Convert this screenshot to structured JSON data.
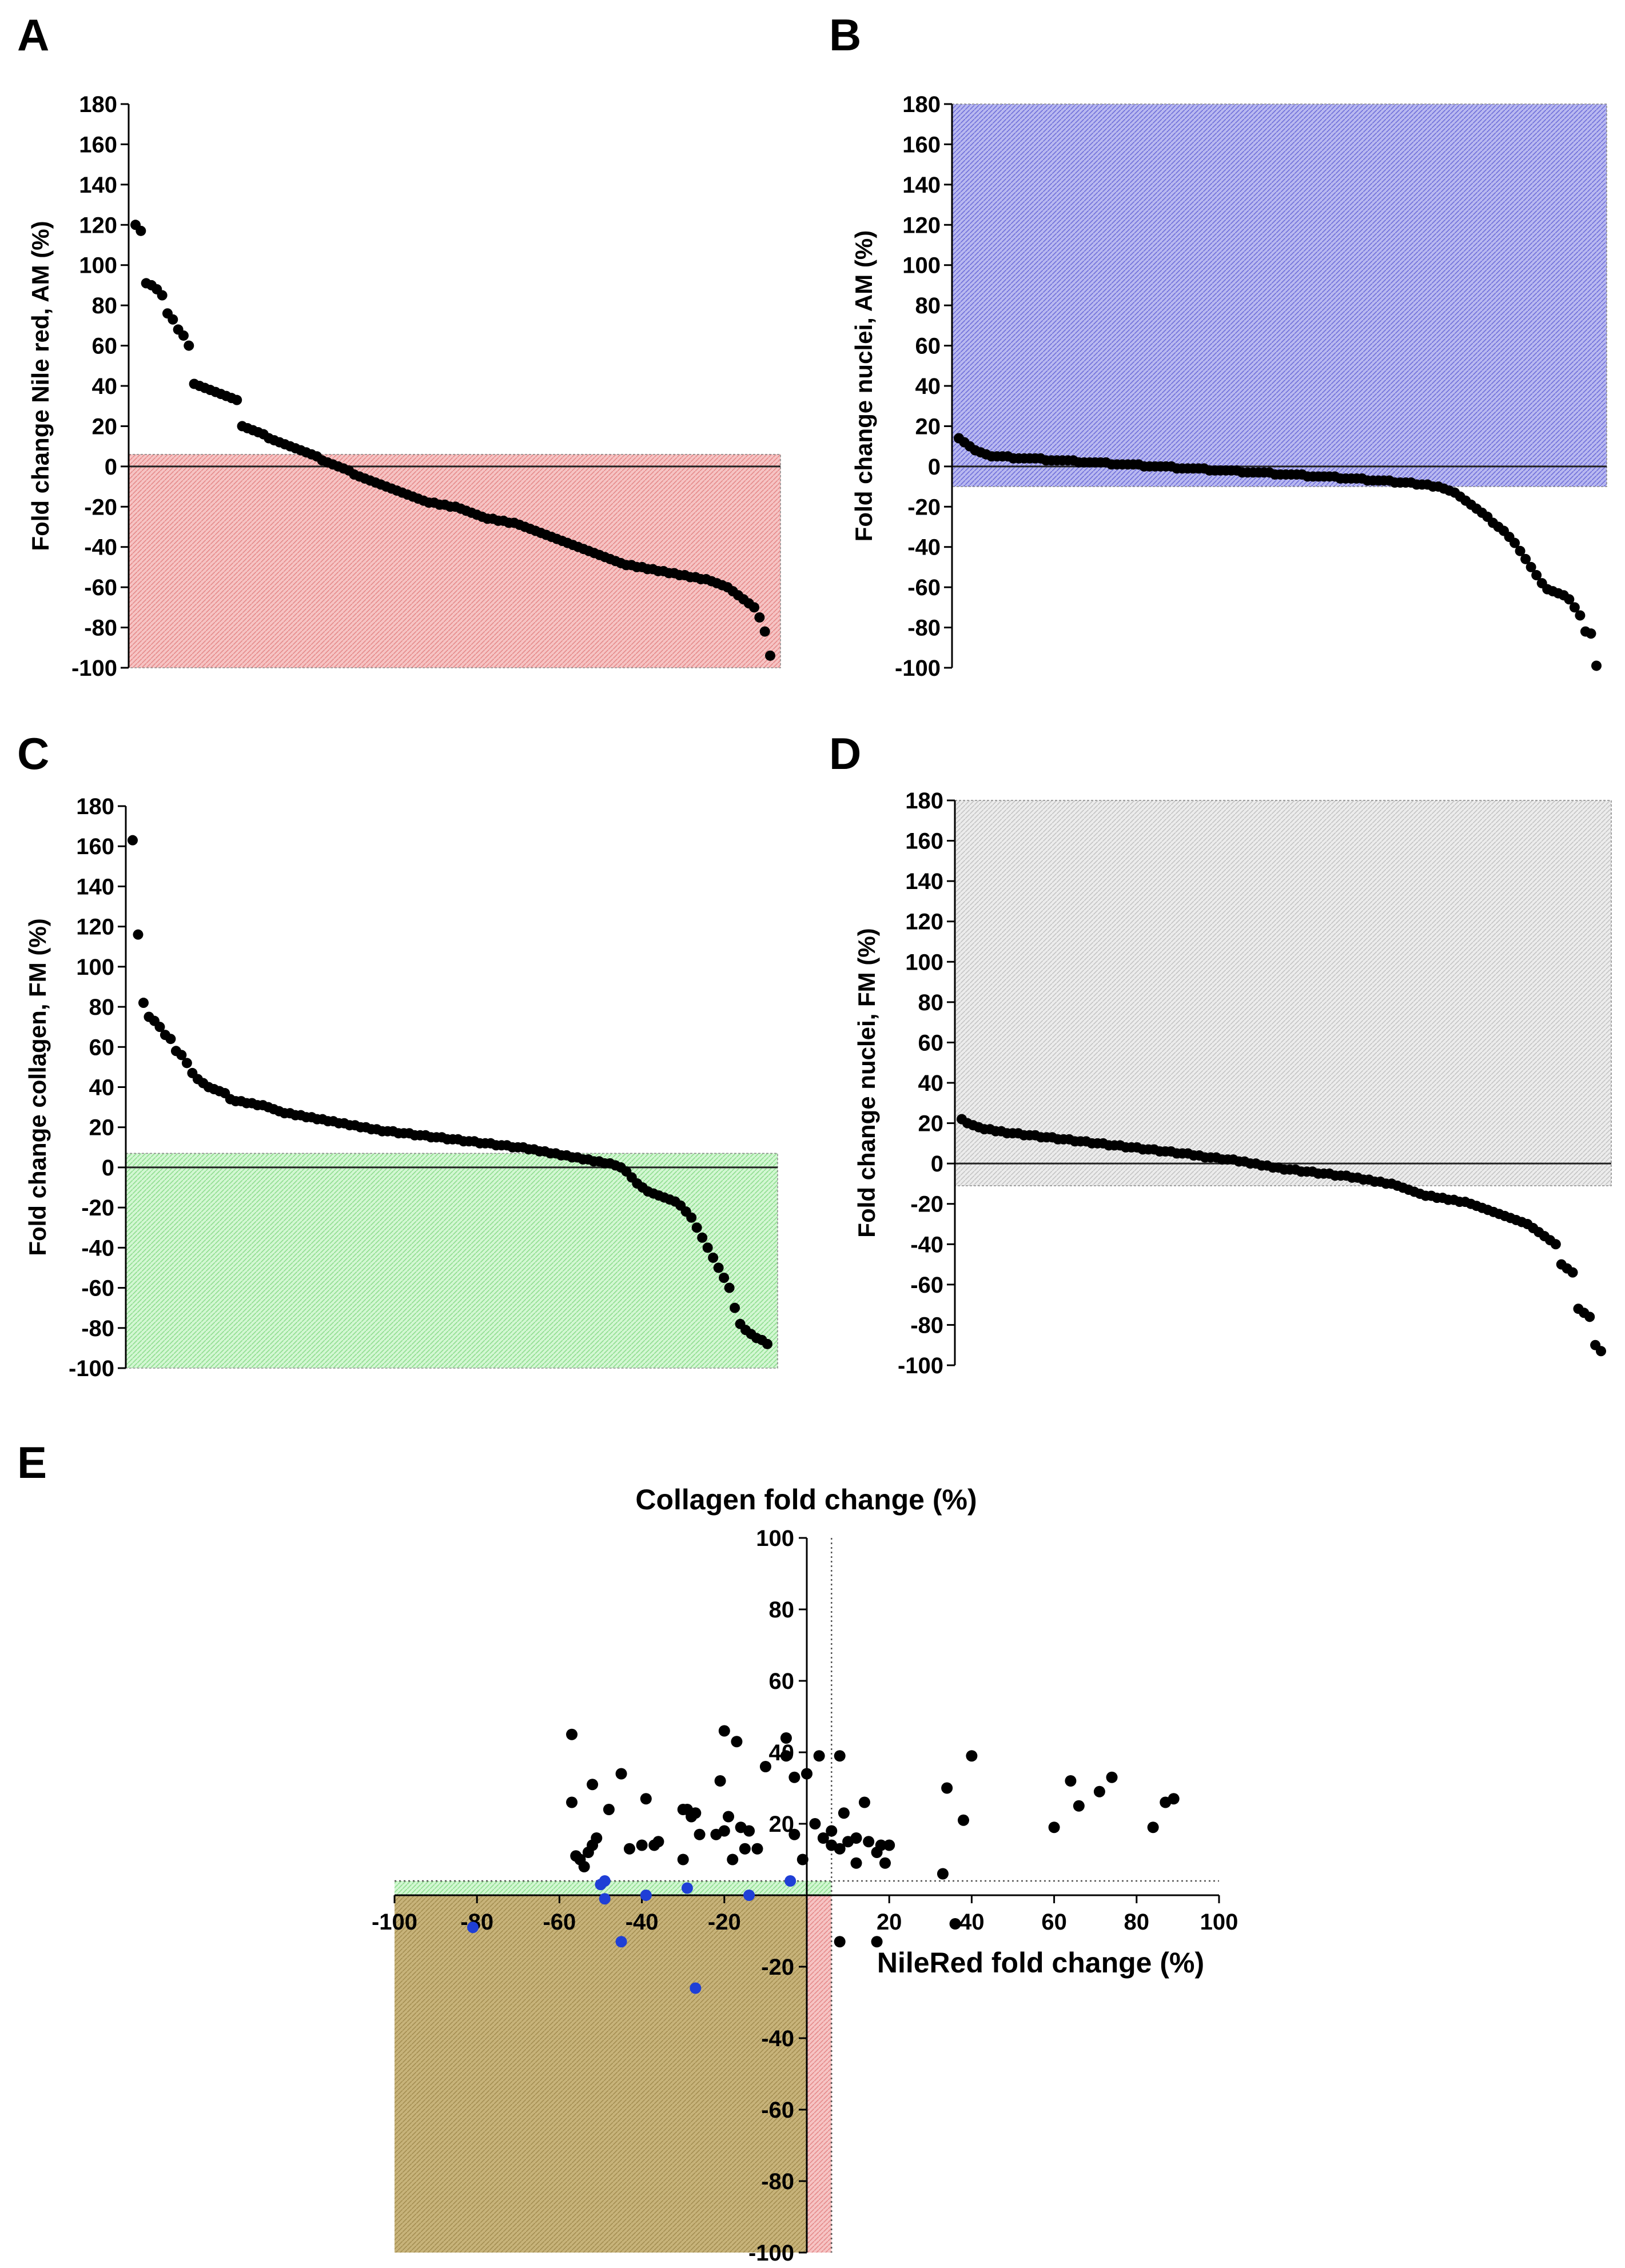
{
  "chart_data": [
    {
      "panel": "A",
      "type": "scatter",
      "title": "",
      "xlabel": "",
      "ylabel": "Fold change Nile red, AM (%)",
      "ylim": [
        -100,
        180
      ],
      "yticks": [
        180,
        160,
        140,
        120,
        100,
        80,
        60,
        40,
        20,
        0,
        -20,
        -40,
        -60,
        -80,
        -100
      ],
      "highlight": {
        "color": "#f2a9a9",
        "y_from": -100,
        "y_to": 6
      },
      "x": "rank (sorted descending)",
      "values": [
        120,
        117,
        91,
        90,
        88,
        85,
        76,
        73,
        68,
        65,
        60,
        41,
        40,
        39,
        38,
        37,
        36,
        35,
        34,
        33,
        20,
        19,
        18,
        17,
        16,
        14,
        13,
        12,
        11,
        10,
        9,
        8,
        7,
        6,
        5,
        3,
        2,
        1,
        0,
        -1,
        -2,
        -4,
        -5,
        -6,
        -7,
        -8,
        -9,
        -10,
        -11,
        -12,
        -13,
        -14,
        -15,
        -16,
        -17,
        -18,
        -18,
        -19,
        -19,
        -20,
        -20,
        -21,
        -22,
        -23,
        -24,
        -25,
        -26,
        -26,
        -27,
        -27,
        -28,
        -28,
        -29,
        -30,
        -31,
        -32,
        -33,
        -34,
        -35,
        -36,
        -37,
        -38,
        -39,
        -40,
        -41,
        -42,
        -43,
        -44,
        -45,
        -46,
        -47,
        -48,
        -49,
        -49,
        -50,
        -50,
        -51,
        -51,
        -52,
        -52,
        -53,
        -53,
        -54,
        -54,
        -55,
        -55,
        -56,
        -56,
        -57,
        -58,
        -59,
        -60,
        -62,
        -64,
        -66,
        -68,
        -70,
        -75,
        -82,
        -94
      ]
    },
    {
      "panel": "B",
      "type": "scatter",
      "title": "",
      "xlabel": "",
      "ylabel": "Fold change nuclei, AM (%)",
      "ylim": [
        -100,
        180
      ],
      "yticks": [
        180,
        160,
        140,
        120,
        100,
        80,
        60,
        40,
        20,
        0,
        -20,
        -40,
        -60,
        -80,
        -100
      ],
      "highlight": {
        "color": "#9b9be8",
        "y_from": -10,
        "y_to": 180
      },
      "x": "rank (sorted descending)",
      "values": [
        14,
        12,
        10,
        8,
        7,
        6,
        5,
        5,
        5,
        5,
        4,
        4,
        4,
        4,
        4,
        4,
        3,
        3,
        3,
        3,
        3,
        3,
        2,
        2,
        2,
        2,
        2,
        2,
        1,
        1,
        1,
        1,
        1,
        1,
        0,
        0,
        0,
        0,
        0,
        0,
        -1,
        -1,
        -1,
        -1,
        -1,
        -1,
        -2,
        -2,
        -2,
        -2,
        -2,
        -2,
        -3,
        -3,
        -3,
        -3,
        -3,
        -3,
        -4,
        -4,
        -4,
        -4,
        -4,
        -4,
        -5,
        -5,
        -5,
        -5,
        -5,
        -5,
        -6,
        -6,
        -6,
        -6,
        -6,
        -7,
        -7,
        -7,
        -7,
        -7,
        -8,
        -8,
        -8,
        -8,
        -9,
        -9,
        -9,
        -10,
        -10,
        -11,
        -12,
        -13,
        -15,
        -17,
        -19,
        -21,
        -23,
        -25,
        -28,
        -30,
        -32,
        -35,
        -38,
        -42,
        -46,
        -50,
        -54,
        -58,
        -61,
        -62,
        -63,
        -64,
        -66,
        -70,
        -74,
        -82,
        -83,
        -99
      ]
    },
    {
      "panel": "C",
      "type": "scatter",
      "title": "",
      "xlabel": "",
      "ylabel": "Fold change collagen, FM (%)",
      "ylim": [
        -100,
        180
      ],
      "yticks": [
        180,
        160,
        140,
        120,
        100,
        80,
        60,
        40,
        20,
        0,
        -20,
        -40,
        -60,
        -80,
        -100
      ],
      "highlight": {
        "color": "#b9f0b9",
        "y_from": -100,
        "y_to": 7
      },
      "x": "rank (sorted descending)",
      "values": [
        163,
        116,
        82,
        75,
        73,
        70,
        66,
        64,
        58,
        56,
        52,
        47,
        44,
        42,
        40,
        39,
        38,
        37,
        34,
        33,
        33,
        32,
        32,
        31,
        31,
        30,
        29,
        28,
        27,
        27,
        26,
        26,
        25,
        25,
        24,
        24,
        23,
        23,
        22,
        22,
        21,
        21,
        20,
        20,
        19,
        19,
        18,
        18,
        18,
        17,
        17,
        17,
        16,
        16,
        16,
        15,
        15,
        15,
        14,
        14,
        14,
        13,
        13,
        13,
        12,
        12,
        12,
        11,
        11,
        11,
        10,
        10,
        10,
        9,
        9,
        8,
        8,
        7,
        7,
        6,
        6,
        5,
        5,
        4,
        4,
        3,
        3,
        2,
        2,
        1,
        0,
        -2,
        -5,
        -8,
        -10,
        -12,
        -13,
        -14,
        -15,
        -16,
        -17,
        -19,
        -22,
        -25,
        -30,
        -35,
        -40,
        -45,
        -50,
        -55,
        -60,
        -70,
        -78,
        -81,
        -83,
        -85,
        -86,
        -88
      ]
    },
    {
      "panel": "D",
      "type": "scatter",
      "title": "",
      "xlabel": "",
      "ylabel": "Fold change nuclei, FM (%)",
      "ylim": [
        -100,
        180
      ],
      "yticks": [
        180,
        160,
        140,
        120,
        100,
        80,
        60,
        40,
        20,
        0,
        -20,
        -40,
        -60,
        -80,
        -100
      ],
      "highlight": {
        "color": "#d9d9d9",
        "y_from": -11,
        "y_to": 180
      },
      "x": "rank (sorted descending)",
      "values": [
        22,
        20,
        19,
        18,
        17,
        17,
        16,
        16,
        15,
        15,
        15,
        14,
        14,
        14,
        13,
        13,
        13,
        12,
        12,
        12,
        11,
        11,
        11,
        10,
        10,
        10,
        9,
        9,
        9,
        8,
        8,
        8,
        7,
        7,
        7,
        6,
        6,
        6,
        5,
        5,
        5,
        4,
        4,
        3,
        3,
        3,
        2,
        2,
        2,
        1,
        1,
        0,
        0,
        -1,
        -1,
        -2,
        -2,
        -3,
        -3,
        -3,
        -4,
        -4,
        -4,
        -5,
        -5,
        -5,
        -6,
        -6,
        -6,
        -7,
        -7,
        -8,
        -8,
        -9,
        -9,
        -10,
        -10,
        -11,
        -12,
        -13,
        -14,
        -15,
        -16,
        -16,
        -17,
        -17,
        -18,
        -18,
        -19,
        -19,
        -20,
        -21,
        -22,
        -23,
        -24,
        -25,
        -26,
        -27,
        -28,
        -29,
        -30,
        -32,
        -34,
        -36,
        -38,
        -40,
        -50,
        -52,
        -54,
        -72,
        -74,
        -76,
        -90,
        -93
      ]
    },
    {
      "panel": "E",
      "type": "scatter",
      "title": "",
      "xlabel": "NileRed fold change (%)",
      "ylabel": "Collagen fold change (%)",
      "xlim": [
        -100,
        100
      ],
      "ylim": [
        -100,
        100
      ],
      "xticks": [
        -100,
        -80,
        -60,
        -40,
        -20,
        20,
        40,
        60,
        80,
        100
      ],
      "yticks": [
        100,
        80,
        60,
        40,
        20,
        -20,
        -40,
        -60,
        -80,
        -100
      ],
      "threshold_x": 6,
      "threshold_y": 4,
      "regions": [
        {
          "color": "#b9f0b9",
          "x_from": -100,
          "x_to": 6,
          "y_from": -100,
          "y_to": 4
        },
        {
          "color": "#f2a9a9",
          "x_from": -100,
          "x_to": 6,
          "y_from": -100,
          "y_to": 4
        }
      ],
      "series": [
        {
          "name": "black",
          "color": "#000000",
          "points": [
            [
              -57,
              45
            ],
            [
              -57,
              26
            ],
            [
              -56,
              11
            ],
            [
              -55,
              10
            ],
            [
              -54,
              8
            ],
            [
              -53,
              12
            ],
            [
              -52,
              31
            ],
            [
              -52,
              14
            ],
            [
              -51,
              16
            ],
            [
              -48,
              24
            ],
            [
              -45,
              34
            ],
            [
              -43,
              13
            ],
            [
              -40,
              14
            ],
            [
              -39,
              27
            ],
            [
              -37,
              14
            ],
            [
              -36,
              15
            ],
            [
              -30,
              10
            ],
            [
              -30,
              24
            ],
            [
              -29,
              24
            ],
            [
              -28,
              22
            ],
            [
              -27,
              23
            ],
            [
              -26,
              17
            ],
            [
              -22,
              17
            ],
            [
              -21,
              32
            ],
            [
              -20,
              46
            ],
            [
              -20,
              18
            ],
            [
              -19,
              22
            ],
            [
              -18,
              10
            ],
            [
              -17,
              43
            ],
            [
              -16,
              19
            ],
            [
              -15,
              13
            ],
            [
              -14,
              18
            ],
            [
              -12,
              13
            ],
            [
              -10,
              36
            ],
            [
              -5,
              44
            ],
            [
              -5,
              39
            ],
            [
              -3,
              33
            ],
            [
              -3,
              17
            ],
            [
              -1,
              10
            ],
            [
              0,
              34
            ],
            [
              2,
              20
            ],
            [
              3,
              39
            ],
            [
              4,
              16
            ],
            [
              6,
              18
            ],
            [
              6,
              14
            ],
            [
              8,
              39
            ],
            [
              8,
              13
            ],
            [
              9,
              23
            ],
            [
              10,
              15
            ],
            [
              12,
              16
            ],
            [
              12,
              9
            ],
            [
              14,
              26
            ],
            [
              15,
              15
            ],
            [
              17,
              12
            ],
            [
              18,
              14
            ],
            [
              19,
              9
            ],
            [
              20,
              14
            ],
            [
              33,
              6
            ],
            [
              34,
              30
            ],
            [
              38,
              21
            ],
            [
              40,
              39
            ],
            [
              60,
              19
            ],
            [
              64,
              32
            ],
            [
              66,
              25
            ],
            [
              71,
              29
            ],
            [
              74,
              33
            ],
            [
              84,
              19
            ],
            [
              87,
              26
            ],
            [
              89,
              27
            ],
            [
              8,
              -13
            ],
            [
              17,
              -13
            ],
            [
              36,
              -8
            ]
          ]
        },
        {
          "name": "blue",
          "color": "#1f3fd6",
          "points": [
            [
              -50,
              3
            ],
            [
              -49,
              4
            ],
            [
              -49,
              -1
            ],
            [
              -45,
              -13
            ],
            [
              -39,
              0
            ],
            [
              -29,
              2
            ],
            [
              -27,
              -26
            ],
            [
              -14,
              0
            ],
            [
              -4,
              4
            ],
            [
              -81,
              -9
            ]
          ]
        }
      ]
    }
  ],
  "panels": {
    "a": {
      "label": "A"
    },
    "b": {
      "label": "B"
    },
    "c": {
      "label": "C"
    },
    "d": {
      "label": "D"
    },
    "e": {
      "label": "E"
    }
  }
}
